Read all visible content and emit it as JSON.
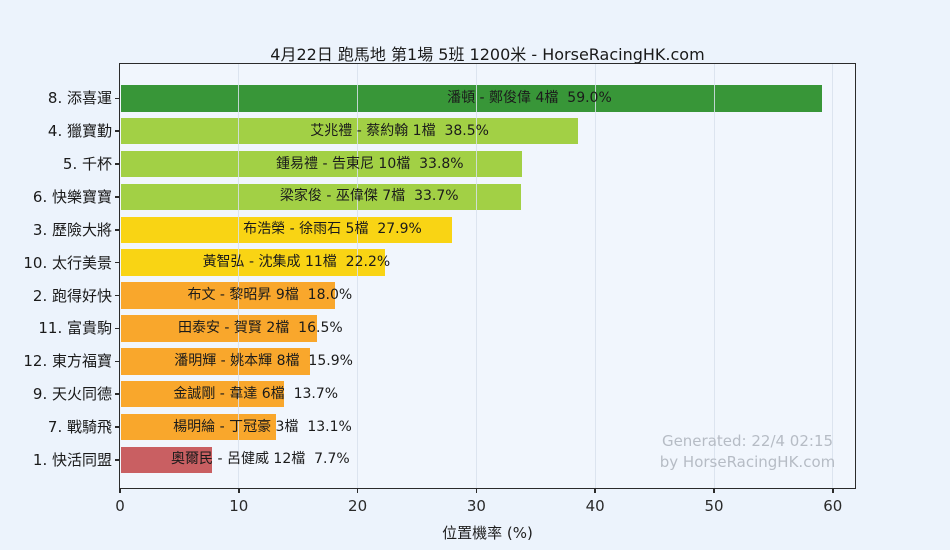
{
  "page": {
    "watermark_line1": "Generated: 22/4 02:15",
    "watermark_line2": "by HorseRacingHK.com"
  },
  "colors": {
    "canvas_bg": "#ecf3fc",
    "plot_bg": "#f1f6fd",
    "axis": "#2b2b2b",
    "gridline": "#d8e1ec",
    "watermark_text": "#b6bcc5",
    "bar_text": "#1b1b1b"
  },
  "chart_data": {
    "type": "bar",
    "orientation": "horizontal",
    "title": "4月22日 跑馬地 第1場 5班 1200米 - HorseRacingHK.com",
    "xlabel": "位置機率 (%)",
    "ylabel": "",
    "xlim": [
      0,
      61.8
    ],
    "xticks": [
      0,
      10,
      20,
      30,
      40,
      50,
      60
    ],
    "grid": true,
    "legend": false,
    "categories": [
      "8. 添喜運",
      "4. 獵寶勤",
      "5. 千杯",
      "6. 快樂寶寶",
      "3. 歷險大將",
      "10. 太行美景",
      "2. 跑得好快",
      "11. 富貴駒",
      "12. 東方福寶",
      "9. 天火同德",
      "7. 戰騎飛",
      "1. 快活同盟"
    ],
    "values": [
      59.0,
      38.5,
      33.8,
      33.7,
      27.9,
      22.2,
      18.0,
      16.5,
      15.9,
      13.7,
      13.1,
      7.7
    ],
    "bar_labels": [
      "潘頓 - 鄭俊偉 4檔  59.0%",
      "艾兆禮 - 蔡約翰 1檔  38.5%",
      "鍾易禮 - 告東尼 10檔  33.8%",
      "梁家俊 - 巫偉傑 7檔  33.7%",
      "布浩榮 - 徐雨石 5檔  27.9%",
      "黃智弘 - 沈集成 11檔  22.2%",
      "布文 - 黎昭昇 9檔  18.0%",
      "田泰安 - 賀賢 2檔  16.5%",
      "潘明輝 - 姚本輝 8檔  15.9%",
      "金誠剛 - 韋達 6檔  13.7%",
      "楊明綸 - 丁冠豪 3檔  13.1%",
      "奧爾民 - 呂健威 12檔  7.7%"
    ],
    "bar_colors": [
      "#389638",
      "#a2d045",
      "#a2d045",
      "#a2d045",
      "#f9d414",
      "#f9d414",
      "#f9a72c",
      "#f9a72c",
      "#f9a72c",
      "#f9a72c",
      "#f9a72c",
      "#c95f62"
    ]
  }
}
